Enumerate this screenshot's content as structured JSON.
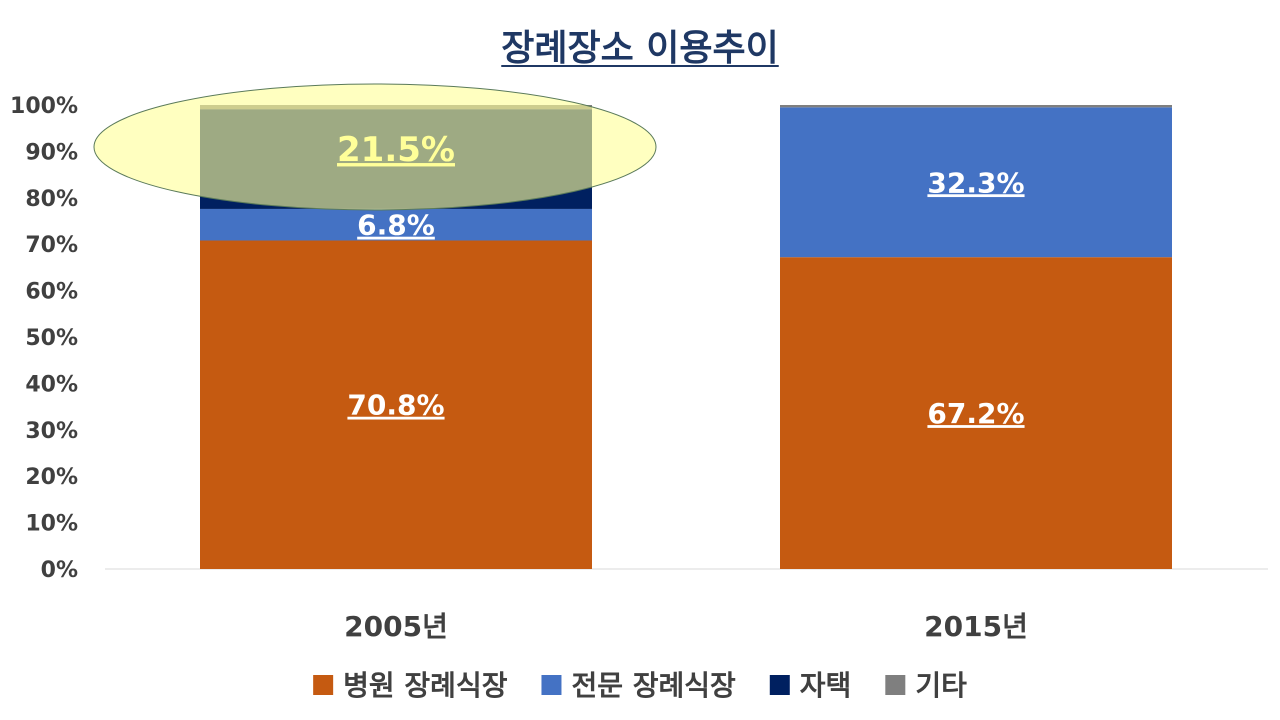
{
  "chart_data": {
    "type": "bar",
    "stacked": true,
    "title": "장례장소 이용추이",
    "categories": [
      "2005년",
      "2015년"
    ],
    "series": [
      {
        "name": "병원 장례식장",
        "values": [
          70.8,
          67.2
        ],
        "labels": [
          "70.8%",
          "67.2%"
        ],
        "color": "#c55a11"
      },
      {
        "name": "전문 장례식장",
        "values": [
          6.8,
          32.3
        ],
        "labels": [
          "6.8%",
          "32.3%"
        ],
        "color": "#4472c4"
      },
      {
        "name": "자택",
        "values": [
          21.5,
          0.0
        ],
        "labels": [
          "21.5%",
          ""
        ],
        "color": "#002060"
      },
      {
        "name": "기타",
        "values": [
          0.9,
          0.5
        ],
        "labels": [
          "",
          ""
        ],
        "color": "#7f7f7f"
      }
    ],
    "yticks": [
      "0%",
      "10%",
      "20%",
      "30%",
      "40%",
      "50%",
      "60%",
      "70%",
      "80%",
      "90%",
      "100%"
    ],
    "ylim": [
      0,
      100
    ],
    "legend_position": "bottom",
    "highlight": {
      "category": "2005년",
      "series": "자택",
      "color": "#ffff99"
    }
  }
}
